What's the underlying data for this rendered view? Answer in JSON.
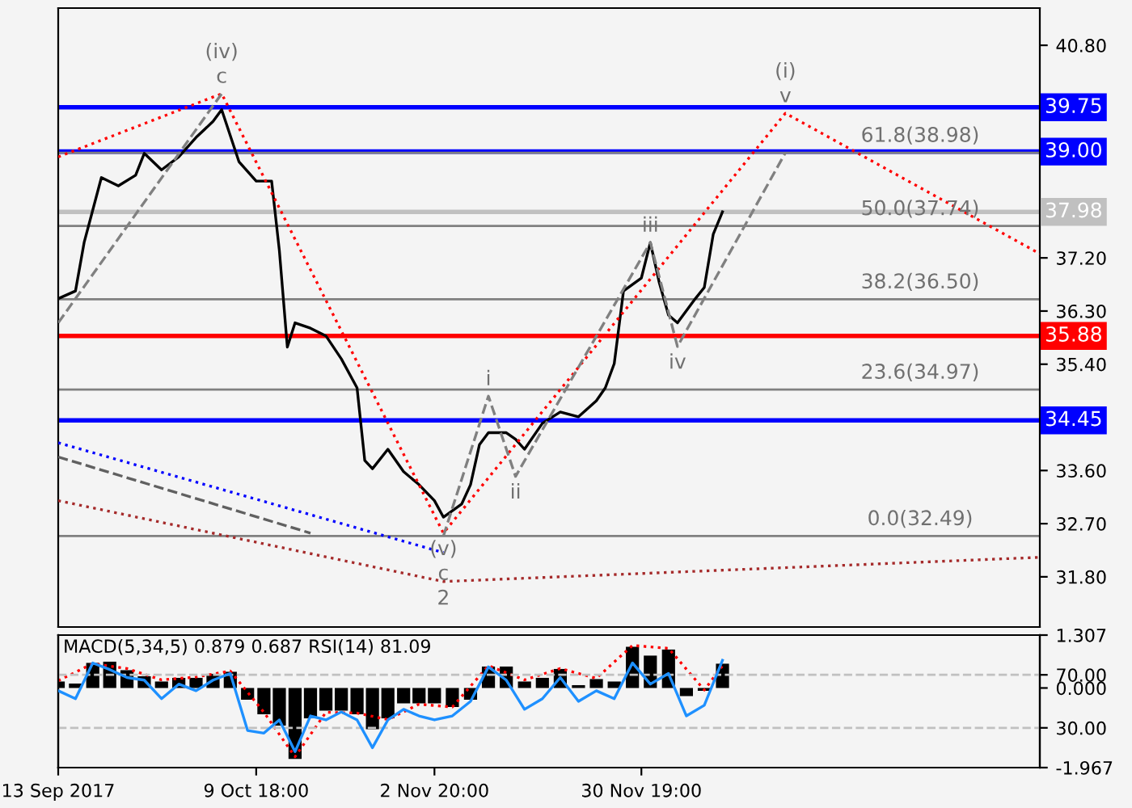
{
  "chart_data": [
    {
      "type": "line",
      "xlim": [
        "2017-09-13T00:00",
        "2018-01-23T15:00"
      ],
      "ylim": [
        30.95,
        41.43
      ],
      "yticks": [
        {
          "value": 40.8,
          "label": "40.80"
        },
        {
          "value": 37.2,
          "label": "37.20"
        },
        {
          "value": 36.3,
          "label": "36.30"
        },
        {
          "value": 35.4,
          "label": "35.40"
        },
        {
          "value": 33.6,
          "label": "33.60"
        },
        {
          "value": 32.7,
          "label": "32.70"
        },
        {
          "value": 31.8,
          "label": "31.80"
        }
      ],
      "tick_labels": "y",
      "grid": false,
      "legend": false,
      "series": [
        {
          "color": "#000000",
          "line_style": "solid",
          "x": [
            "2017-09-13T00:00",
            "2017-09-15T08:00",
            "2017-09-16T12:00",
            "2017-09-17T16:00",
            "2017-09-18T20:00",
            "2017-09-21T03:00",
            "2017-09-23T11:00",
            "2017-09-24T15:00",
            "2017-09-26T23:00",
            "2017-09-29T07:00",
            "2017-10-01T15:00",
            "2017-10-03T22:00",
            "2017-10-05T02:00",
            "2017-10-07T10:00",
            "2017-10-09T18:00",
            "2017-10-11T20:00",
            "2017-10-12T21:00",
            "2017-10-13T23:00",
            "2017-10-15T00:00",
            "2017-10-17T02:00",
            "2017-10-19T04:00",
            "2017-10-21T06:00",
            "2017-10-23T09:00",
            "2017-10-24T10:00",
            "2017-10-25T11:00",
            "2017-10-27T13:00",
            "2017-10-29T16:00",
            "2017-10-31T18:00",
            "2017-11-02T20:00",
            "2017-11-04T01:00",
            "2017-11-06T12:00",
            "2017-11-07T17:00",
            "2017-11-08T22:00",
            "2017-11-10T03:00",
            "2017-11-12T13:00",
            "2017-11-13T19:00",
            "2017-11-15T00:00",
            "2017-11-17T10:00",
            "2017-11-19T20:00",
            "2017-11-22T07:00",
            "2017-11-24T17:00",
            "2017-11-25T22:00",
            "2017-11-27T03:00",
            "2017-11-28T09:00",
            "2017-11-30T19:00",
            "2017-12-02T00:00",
            "2017-12-03T05:00",
            "2017-12-04T11:00",
            "2017-12-05T16:00",
            "2017-12-08T02:00",
            "2017-12-09T07:00",
            "2017-12-10T12:00",
            "2017-12-11T18:00"
          ],
          "values": [
            36.51,
            36.64,
            37.46,
            38.01,
            38.56,
            38.42,
            38.6,
            38.97,
            38.69,
            38.91,
            39.24,
            39.51,
            39.71,
            38.83,
            38.5,
            38.5,
            37.33,
            35.69,
            36.1,
            36.01,
            35.88,
            35.49,
            35.0,
            33.77,
            33.63,
            33.96,
            33.58,
            33.36,
            33.09,
            32.81,
            33.03,
            33.36,
            34.04,
            34.24,
            34.24,
            34.13,
            33.96,
            34.4,
            34.59,
            34.51,
            34.78,
            35.0,
            35.41,
            36.64,
            36.86,
            37.46,
            36.78,
            36.23,
            36.1,
            36.51,
            36.7,
            37.6,
            37.98
          ]
        },
        {
          "color": "#ff0000",
          "line_style": "dotted",
          "x": [
            "2017-09-13T00:00",
            "2017-10-05T02:00",
            "2017-11-04T01:00",
            "2017-12-20T06:00",
            "2018-01-23T15:00"
          ],
          "values": [
            38.91,
            39.98,
            32.54,
            39.65,
            37.27
          ]
        },
        {
          "color": "#808080",
          "line_style": "dashed",
          "x": [
            "2017-09-13T00:00",
            "2017-10-05T02:00"
          ],
          "values": [
            36.1,
            39.98
          ]
        },
        {
          "color": "#808080",
          "line_style": "dashed",
          "x": [
            "2017-11-04T01:00",
            "2017-11-10T03:00",
            "2017-11-13T19:00",
            "2017-12-02T00:00",
            "2017-12-05T16:00",
            "2017-12-20T06:00"
          ],
          "values": [
            32.49,
            34.86,
            33.5,
            37.46,
            35.7,
            38.98
          ]
        },
        {
          "color": "#0000ff",
          "line_style": "dotted",
          "x": [
            "2017-09-13T00:00",
            "2017-11-04T01:00"
          ],
          "values": [
            34.07,
            32.21
          ]
        },
        {
          "color": "#606060",
          "line_style": "dashed",
          "x": [
            "2017-09-13T00:00",
            "2017-10-17T02:00"
          ],
          "values": [
            33.83,
            32.54
          ]
        },
        {
          "color": "#a52a2a",
          "line_style": "dotted",
          "x": [
            "2017-09-13T00:00",
            "2017-11-04T01:00",
            "2018-01-23T15:00"
          ],
          "values": [
            33.09,
            31.72,
            32.13
          ]
        }
      ],
      "ref_lines": [
        {
          "axis": "y",
          "value": 39.75,
          "label": "39.75",
          "color": "#0000ff"
        },
        {
          "axis": "y",
          "value": 39.0,
          "label": "39.00",
          "color": "#0000ff"
        },
        {
          "axis": "y",
          "value": 35.88,
          "label": "35.88",
          "color": "#ff0000"
        },
        {
          "axis": "y",
          "value": 34.45,
          "label": "34.45",
          "color": "#0000ff"
        },
        {
          "axis": "y",
          "value": 37.98,
          "label": "37.98",
          "color": "#c0c0c0"
        },
        {
          "axis": "y",
          "value": 38.98,
          "color": "#808080"
        },
        {
          "axis": "y",
          "value": 37.74,
          "color": "#808080"
        },
        {
          "axis": "y",
          "value": 36.5,
          "color": "#808080"
        },
        {
          "axis": "y",
          "value": 34.97,
          "color": "#808080"
        },
        {
          "axis": "y",
          "value": 32.49,
          "color": "#808080"
        }
      ],
      "annotations": [
        {
          "text": "61.8(38.98)",
          "x": "2018-01-07T11:00",
          "y": 38.98
        },
        {
          "text": "50.0(37.74)",
          "x": "2018-01-07T11:00",
          "y": 37.74
        },
        {
          "text": "38.2(36.50)",
          "x": "2018-01-07T11:00",
          "y": 36.5
        },
        {
          "text": "23.6(34.97)",
          "x": "2018-01-07T11:00",
          "y": 34.97
        },
        {
          "text": "0.0(32.49)",
          "x": "2018-01-07T11:00",
          "y": 32.49
        },
        {
          "text": "c",
          "x": "2017-10-05T02:00",
          "y": 39.98
        },
        {
          "text": "(iv)",
          "x": "2017-10-05T02:00",
          "y": 39.98
        },
        {
          "text": "(v)",
          "x": "2017-11-04T01:00",
          "y": 32.54
        },
        {
          "text": "c",
          "x": "2017-11-04T01:00",
          "y": 32.54
        },
        {
          "text": "2",
          "x": "2017-11-04T01:00",
          "y": 32.54
        },
        {
          "text": "i",
          "x": "2017-11-10T03:00",
          "y": 34.86
        },
        {
          "text": "ii",
          "x": "2017-11-13T19:00",
          "y": 33.5
        },
        {
          "text": "iii",
          "x": "2017-12-02T00:00",
          "y": 37.46
        },
        {
          "text": "iv",
          "x": "2017-12-05T16:00",
          "y": 35.7
        },
        {
          "text": "v",
          "x": "2017-12-20T06:00",
          "y": 39.65
        },
        {
          "text": "(i)",
          "x": "2017-12-20T06:00",
          "y": 39.65
        }
      ]
    },
    {
      "type": "bar",
      "xlim": [
        "2017-09-13T00:00",
        "2018-01-23T15:00"
      ],
      "ylim": [
        -1.967,
        1.307
      ],
      "xticks": [
        {
          "value": "2017-09-13T00:00",
          "label": "13 Sep 2017"
        },
        {
          "value": "2017-10-09T18:00",
          "label": "9 Oct 18:00"
        },
        {
          "value": "2017-11-02T20:00",
          "label": "2 Nov 20:00"
        },
        {
          "value": "2017-11-30T19:00",
          "label": "30 Nov 19:00"
        }
      ],
      "yticks": [
        {
          "value": 1.307,
          "label": "1.307"
        },
        {
          "value": 0,
          "label": "0.000"
        },
        {
          "value": -1.967,
          "label": "-1.967"
        }
      ],
      "y2lim": [
        0,
        100
      ],
      "y2ticks": [
        {
          "value": 70,
          "label": "70.00"
        },
        {
          "value": 30,
          "label": "30.00"
        }
      ],
      "grid": false,
      "legend": false,
      "series": [
        {
          "type": "bar",
          "color": "#000000",
          "x": [
            "2017-09-13T00:00",
            "2017-09-15T08:00",
            "2017-09-17T16:00",
            "2017-09-19T23:00",
            "2017-09-22T07:00",
            "2017-09-24T15:00",
            "2017-09-26T23:00",
            "2017-09-29T07:00",
            "2017-10-01T15:00",
            "2017-10-03T22:00",
            "2017-10-06T06:00",
            "2017-10-08T14:00",
            "2017-10-10T19:00",
            "2017-10-12T21:00",
            "2017-10-15T00:00",
            "2017-10-17T02:00",
            "2017-10-19T04:00",
            "2017-10-21T06:00",
            "2017-10-23T09:00",
            "2017-10-25T11:00",
            "2017-10-27T13:00",
            "2017-10-29T16:00",
            "2017-10-31T18:00",
            "2017-11-02T20:00",
            "2017-11-05T06:00",
            "2017-11-07T17:00",
            "2017-11-10T03:00",
            "2017-11-12T13:00",
            "2017-11-15T00:00",
            "2017-11-17T10:00",
            "2017-11-19T20:00",
            "2017-11-22T07:00",
            "2017-11-24T17:00",
            "2017-11-27T03:00",
            "2017-11-29T14:00",
            "2017-12-02T00:00",
            "2017-12-04T11:00",
            "2017-12-06T21:00",
            "2017-12-09T07:00",
            "2017-12-11T18:00"
          ],
          "values": [
            0.16,
            0.11,
            0.62,
            0.65,
            0.44,
            0.29,
            0.16,
            0.25,
            0.25,
            0.35,
            0.4,
            -0.29,
            -0.65,
            -0.93,
            -1.75,
            -0.75,
            -0.56,
            -0.56,
            -0.65,
            -1.02,
            -0.75,
            -0.38,
            -0.38,
            -0.38,
            -0.47,
            -0.29,
            0.53,
            0.53,
            0.16,
            0.25,
            0.47,
            0.07,
            0.22,
            0.16,
            1.02,
            0.8,
            0.95,
            -0.2,
            -0.07,
            0.6
          ]
        },
        {
          "type": "line",
          "color": "#ff0000",
          "line_style": "dotted",
          "x": [
            "2017-09-13T00:00",
            "2017-09-17T16:00",
            "2017-09-22T07:00",
            "2017-09-26T23:00",
            "2017-10-01T15:00",
            "2017-10-06T06:00",
            "2017-10-10T19:00",
            "2017-10-15T00:00",
            "2017-10-19T04:00",
            "2017-10-23T09:00",
            "2017-10-27T13:00",
            "2017-10-31T18:00",
            "2017-11-05T06:00",
            "2017-11-10T03:00",
            "2017-11-15T00:00",
            "2017-11-19T20:00",
            "2017-11-24T17:00",
            "2017-11-29T14:00",
            "2017-12-04T11:00",
            "2017-12-09T07:00",
            "2017-12-11T18:00"
          ],
          "values": [
            0.18,
            0.6,
            0.48,
            0.2,
            0.27,
            0.42,
            -0.6,
            -1.7,
            -0.6,
            -0.62,
            -0.78,
            -0.4,
            -0.47,
            0.55,
            0.2,
            0.48,
            0.24,
            1.05,
            0.98,
            -0.05,
            0.55
          ]
        },
        {
          "type": "line",
          "axis": "y2",
          "color": "#1e90ff",
          "line_style": "solid",
          "x": [
            "2017-09-13T00:00",
            "2017-09-15T08:00",
            "2017-09-17T16:00",
            "2017-09-19T23:00",
            "2017-09-22T07:00",
            "2017-09-24T15:00",
            "2017-09-26T23:00",
            "2017-09-29T07:00",
            "2017-10-01T15:00",
            "2017-10-03T22:00",
            "2017-10-06T06:00",
            "2017-10-08T14:00",
            "2017-10-10T19:00",
            "2017-10-12T21:00",
            "2017-10-15T00:00",
            "2017-10-17T02:00",
            "2017-10-19T04:00",
            "2017-10-21T06:00",
            "2017-10-23T09:00",
            "2017-10-25T11:00",
            "2017-10-27T13:00",
            "2017-10-29T16:00",
            "2017-10-31T18:00",
            "2017-11-02T20:00",
            "2017-11-05T06:00",
            "2017-11-07T17:00",
            "2017-11-10T03:00",
            "2017-11-12T13:00",
            "2017-11-15T00:00",
            "2017-11-17T10:00",
            "2017-11-19T20:00",
            "2017-11-22T07:00",
            "2017-11-24T17:00",
            "2017-11-27T03:00",
            "2017-11-29T14:00",
            "2017-12-02T00:00",
            "2017-12-04T11:00",
            "2017-12-06T21:00",
            "2017-12-09T07:00",
            "2017-12-11T18:00"
          ],
          "values": [
            58,
            52,
            79,
            74,
            68,
            66,
            52,
            63,
            58,
            66,
            71,
            28,
            26,
            36,
            12,
            39,
            36,
            42,
            36,
            15,
            36,
            44,
            39,
            36,
            39,
            50,
            76,
            66,
            44,
            52,
            68,
            50,
            58,
            52,
            79,
            63,
            71,
            39,
            47,
            81
          ]
        }
      ],
      "ref_lines": [
        {
          "axis": "y2",
          "value": 70,
          "color": "#c0c0c0",
          "line_style": "dashed"
        },
        {
          "axis": "y2",
          "value": 30,
          "color": "#c0c0c0",
          "line_style": "dashed"
        }
      ],
      "annotations": [
        "MACD(5,34,5) 0.879 0.687 RSI(14) 81.09"
      ]
    }
  ]
}
